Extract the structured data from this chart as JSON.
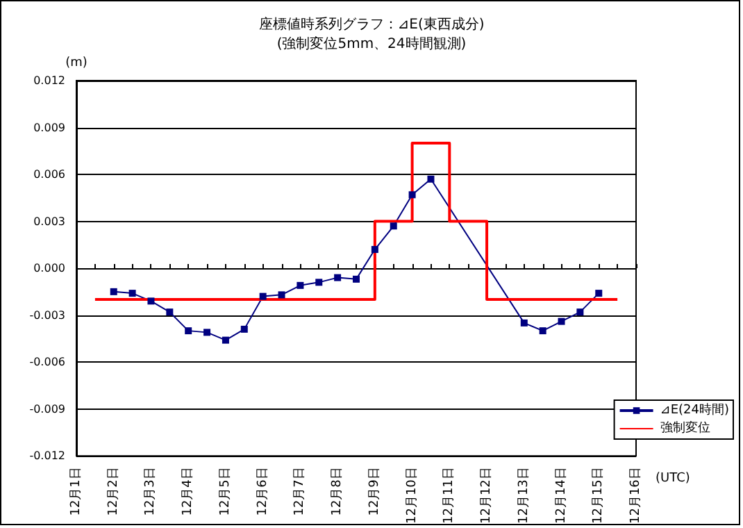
{
  "chart_data": {
    "type": "line",
    "title": "座標値時系列グラフ：⊿E(東西成分)",
    "subtitle": "(強制変位5mm、24時間観測)",
    "ylabel": "(m)",
    "xlabel": "(UTC)",
    "xlim": [
      "--12-01",
      "--12-16"
    ],
    "xticks": [
      {
        "value": "--12-01",
        "label": "12月1日"
      },
      {
        "value": "--12-01T12:00",
        "label": null
      },
      {
        "value": "--12-02",
        "label": "12月2日"
      },
      {
        "value": "--12-02T12:00",
        "label": null
      },
      {
        "value": "--12-03",
        "label": "12月3日"
      },
      {
        "value": "--12-03T12:00",
        "label": null
      },
      {
        "value": "--12-04",
        "label": "12月4日"
      },
      {
        "value": "--12-04T12:00",
        "label": null
      },
      {
        "value": "--12-05",
        "label": "12月5日"
      },
      {
        "value": "--12-05T12:00",
        "label": null
      },
      {
        "value": "--12-06",
        "label": "12月6日"
      },
      {
        "value": "--12-06T12:00",
        "label": null
      },
      {
        "value": "--12-07",
        "label": "12月7日"
      },
      {
        "value": "--12-07T12:00",
        "label": null
      },
      {
        "value": "--12-08",
        "label": "12月8日"
      },
      {
        "value": "--12-08T12:00",
        "label": null
      },
      {
        "value": "--12-09",
        "label": "12月9日"
      },
      {
        "value": "--12-09T12:00",
        "label": null
      },
      {
        "value": "--12-10",
        "label": "12月10日"
      },
      {
        "value": "--12-10T12:00",
        "label": null
      },
      {
        "value": "--12-11",
        "label": "12月11日"
      },
      {
        "value": "--12-11T12:00",
        "label": null
      },
      {
        "value": "--12-12",
        "label": "12月12日"
      },
      {
        "value": "--12-12T12:00",
        "label": null
      },
      {
        "value": "--12-13",
        "label": "12月13日"
      },
      {
        "value": "--12-13T12:00",
        "label": null
      },
      {
        "value": "--12-14",
        "label": "12月14日"
      },
      {
        "value": "--12-14T12:00",
        "label": null
      },
      {
        "value": "--12-15",
        "label": "12月15日"
      },
      {
        "value": "--12-15T12:00",
        "label": null
      },
      {
        "value": "--12-16",
        "label": "12月16日"
      }
    ],
    "ylim": [
      -0.012,
      0.012
    ],
    "yticks": [
      -0.012,
      -0.009,
      -0.006,
      -0.003,
      {
        "value": 0,
        "label": "0.000"
      },
      0.003,
      0.006,
      0.009,
      0.012
    ],
    "grid": "y",
    "legend": "bottom right",
    "series": [
      {
        "name": "⊿E(24時間)",
        "color": "#000080",
        "marker": "square",
        "x": [
          "--12-02",
          "--12-02T12:00",
          "--12-03",
          "--12-03T12:00",
          "--12-04",
          "--12-04T12:00",
          "--12-05",
          "--12-05T12:00",
          "--12-06",
          "--12-06T12:00",
          "--12-07",
          "--12-07T12:00",
          "--12-08",
          "--12-08T12:00",
          "--12-09",
          "--12-09T12:00",
          "--12-10",
          "--12-10T12:00",
          "--12-13",
          "--12-13T12:00",
          "--12-14",
          "--12-14T12:00",
          "--12-15"
        ],
        "values": [
          -0.0015,
          -0.0016,
          -0.0021,
          -0.0028,
          -0.004,
          -0.0041,
          -0.0046,
          -0.0039,
          -0.0018,
          -0.0017,
          -0.0011,
          -0.0009,
          -0.0006,
          -0.0007,
          0.0012,
          0.0027,
          0.0047,
          0.0057,
          -0.0035,
          -0.004,
          -0.0034,
          -0.0028,
          -0.0016
        ]
      },
      {
        "name": "強制変位",
        "type": "step",
        "color": "#ff0000",
        "marker": "none",
        "x": [
          "--12-01T12:00",
          "--12-09",
          "--12-10",
          "--12-11",
          "--12-12",
          "--12-15T12:00"
        ],
        "values": [
          -0.002,
          0.003,
          0.008,
          0.003,
          -0.002,
          -0.002
        ]
      }
    ]
  }
}
